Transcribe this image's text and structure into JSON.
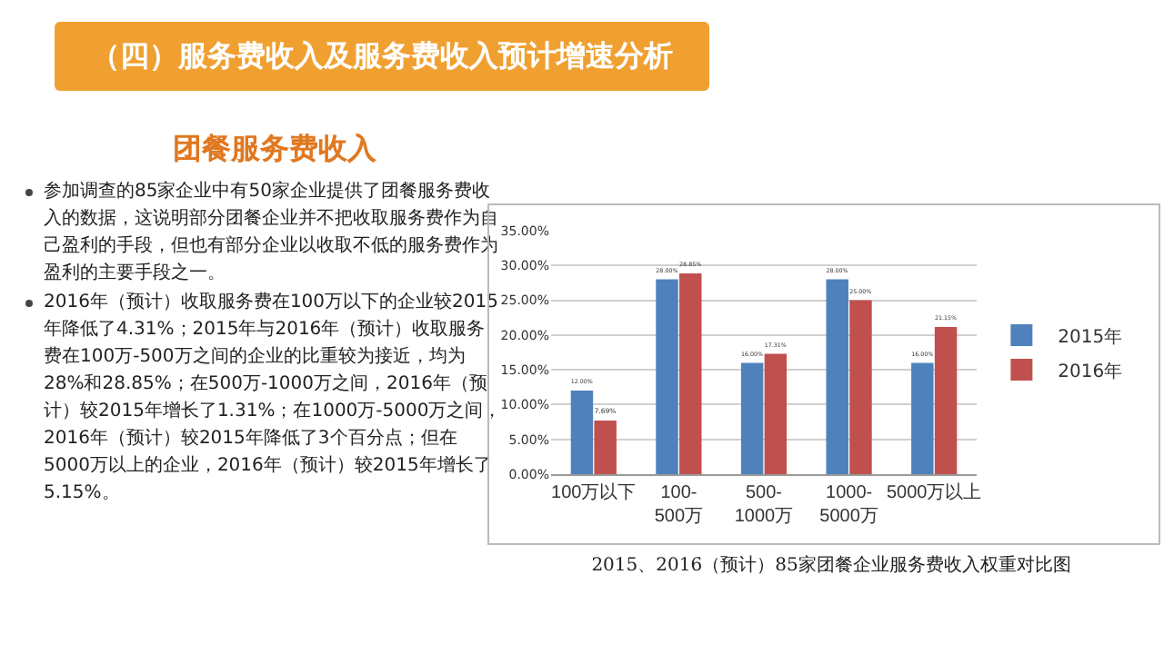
{
  "chart_data": {
    "type": "bar",
    "title": "（四）服务费收入及服务费收入预计增速分析",
    "subtitle": "团餐服务费收入",
    "annotations": [
      "参加调查的85家企业中有50家企业提供了团餐服务费收入的数据，这说明部分团餐企业并不把收取服务费作为自己盈利的手段，但也有部分企业以收取不低的服务费作为盈利的主要手段之一。",
      "2016年（预计）收取服务费在100万以下的企业较2015年降低了4.31%；2015年与2016年（预计）收取服务费在100万-500万之间的企业的比重较为接近，均为28%和28.85%；在500万-1000万之间，2016年（预计）较2015年增长了1.31%；在1000万-5000万之间，2016年（预计）较2015年降低了3个百分点；但在5000万以上的企业，2016年（预计）较2015年增长了5.15%。",
      "2015、2016（预计）85家团餐企业服务费收入权重对比图"
    ],
    "categories": [
      "100万以下",
      "100-500万",
      "500-1000万",
      "1000-5000万",
      "5000万以上"
    ],
    "series": [
      {
        "name": "2015年",
        "color": "#4f81bd",
        "values": [
          12,
          28,
          16,
          28,
          16
        ],
        "value_labels": [
          "12.00%",
          "28.00%",
          "16.00%",
          "28.00%",
          "16.00%"
        ]
      },
      {
        "name": "2016年",
        "color": "#c0504d",
        "values": [
          7.69,
          28.85,
          17.31,
          25,
          21.15
        ],
        "value_labels": [
          "7.69%",
          "28.85%",
          "17.31%",
          "25.00%",
          "21.15%"
        ]
      }
    ],
    "ylim": [
      0,
      35
    ],
    "yticks": [
      {
        "value": 0,
        "label": "0.00%"
      },
      {
        "value": 5,
        "label": "5.00%"
      },
      {
        "value": 10,
        "label": "10.00%"
      },
      {
        "value": 15,
        "label": "15.00%"
      },
      {
        "value": 20,
        "label": "20.00%"
      },
      {
        "value": 25,
        "label": "25.00%"
      },
      {
        "value": 30,
        "label": "30.00%"
      },
      {
        "value": 35,
        "label": "35.00%"
      }
    ],
    "grid": "y",
    "legend": "right"
  }
}
